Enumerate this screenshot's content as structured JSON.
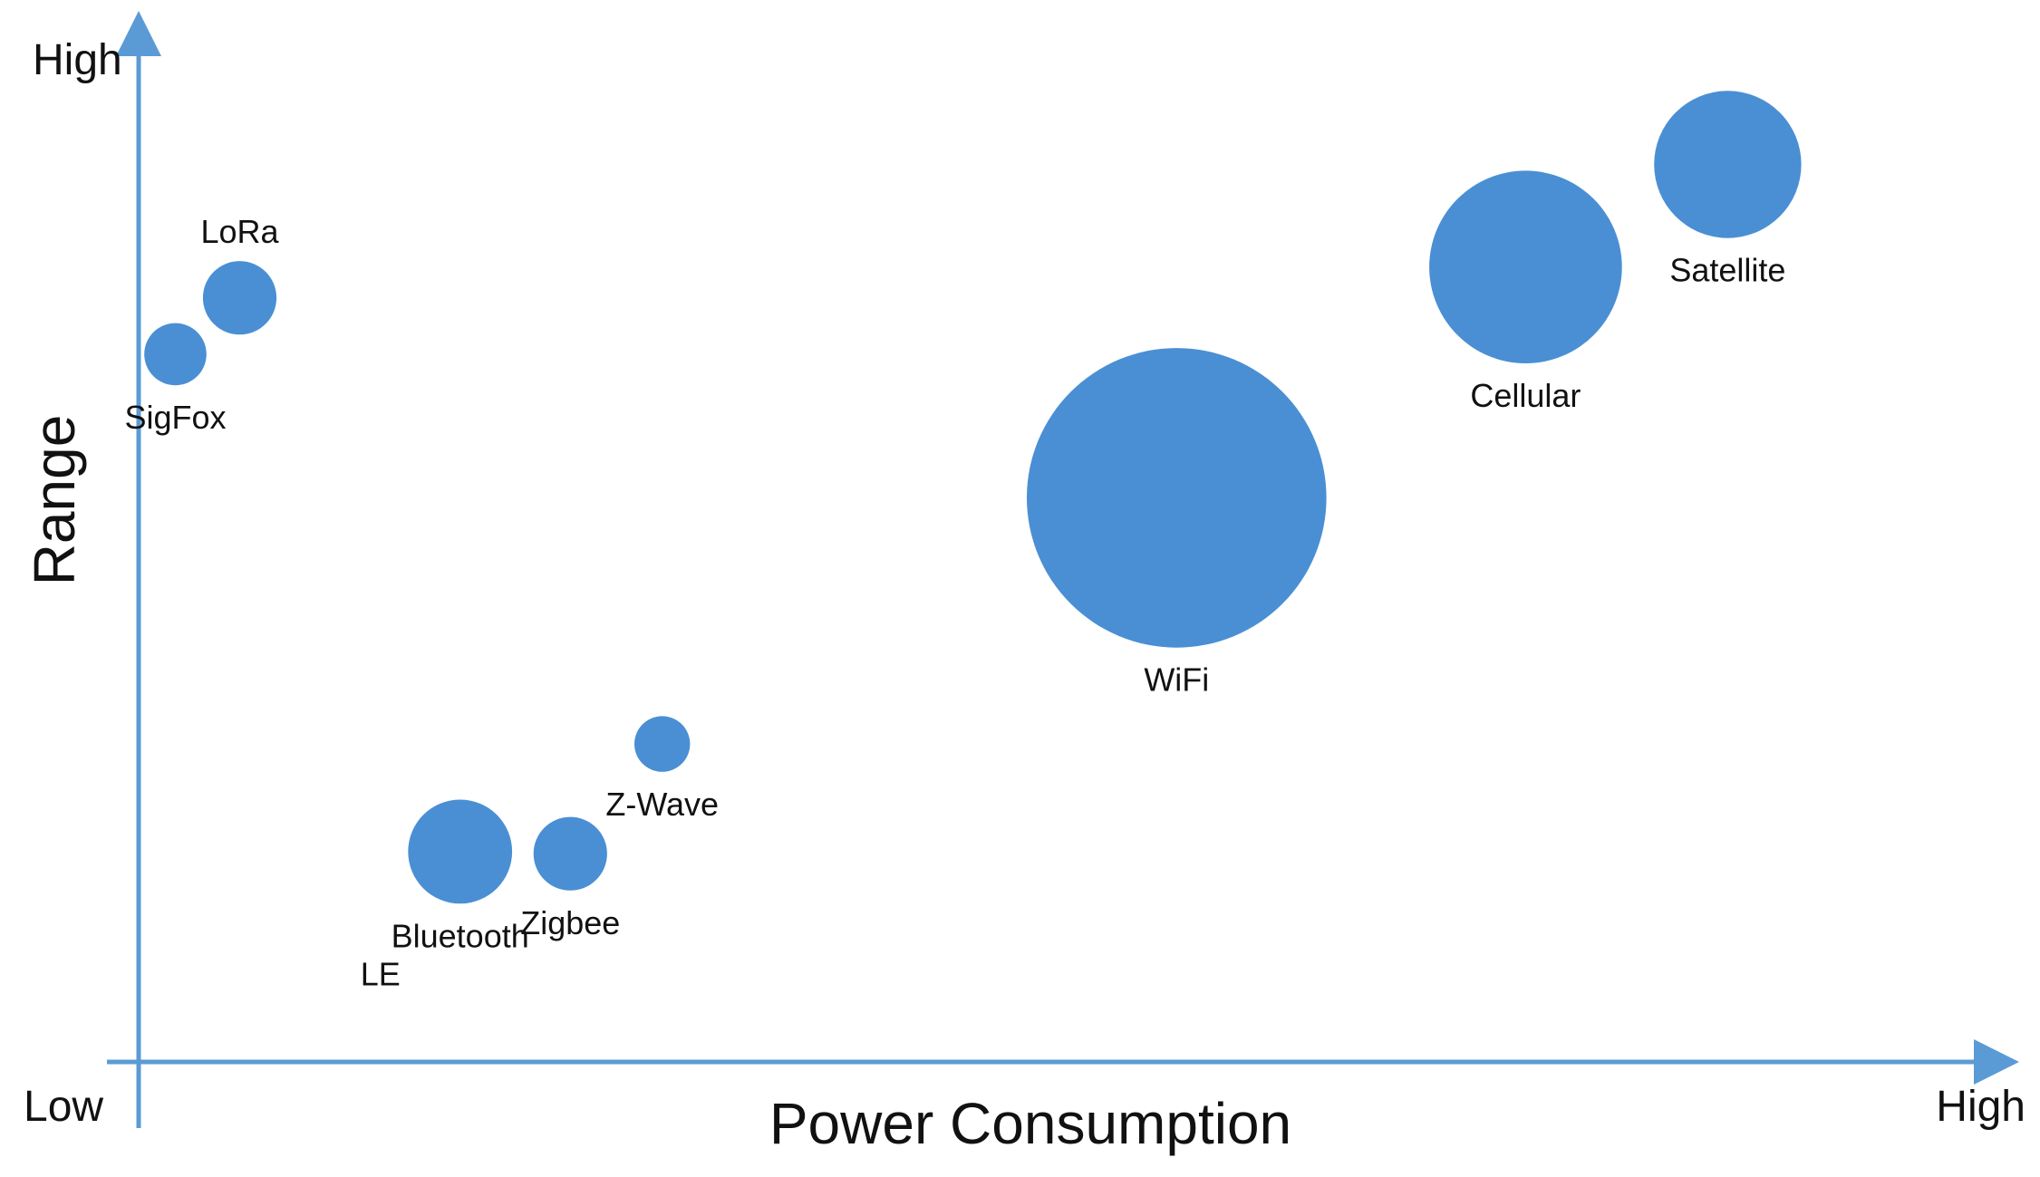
{
  "chart_data": {
    "type": "scatter",
    "variant": "bubble",
    "title": "",
    "xlabel": "Power Consumption",
    "ylabel": "Range",
    "x_axis": {
      "low_label": "Low",
      "high_label": "High"
    },
    "y_axis": {
      "high_label": "High"
    },
    "xlim": [
      0,
      100
    ],
    "ylim": [
      0,
      100
    ],
    "bubble_color": "#4a8fd4",
    "axis_color": "#5b9bd5",
    "grid": false,
    "legend": "none",
    "points": [
      {
        "name": "SigFox",
        "label_lines": [
          "SigFox"
        ],
        "x": 2,
        "y": 69,
        "size": 2.5,
        "label_pos": "below"
      },
      {
        "name": "LoRa",
        "label_lines": [
          "LoRa"
        ],
        "x": 5.5,
        "y": 74.5,
        "size": 3.5,
        "label_pos": "above"
      },
      {
        "name": "Bluetooth LE",
        "label_lines": [
          "Bluetooth",
          "LE"
        ],
        "x": 17.5,
        "y": 20.5,
        "size": 7,
        "label_pos": "below"
      },
      {
        "name": "Zigbee",
        "label_lines": [
          "Zigbee"
        ],
        "x": 23.5,
        "y": 20.3,
        "size": 3.5,
        "label_pos": "below"
      },
      {
        "name": "Z-Wave",
        "label_lines": [
          "Z-Wave"
        ],
        "x": 28.5,
        "y": 31,
        "size": 2,
        "label_pos": "below"
      },
      {
        "name": "WiFi",
        "label_lines": [
          "WiFi"
        ],
        "x": 56.5,
        "y": 55,
        "size": 58,
        "label_pos": "below"
      },
      {
        "name": "Cellular",
        "label_lines": [
          "Cellular"
        ],
        "x": 75.5,
        "y": 77.5,
        "size": 24,
        "label_pos": "below"
      },
      {
        "name": "Satellite",
        "label_lines": [
          "Satellite"
        ],
        "x": 86.5,
        "y": 87.5,
        "size": 14,
        "label_pos": "below"
      }
    ]
  }
}
